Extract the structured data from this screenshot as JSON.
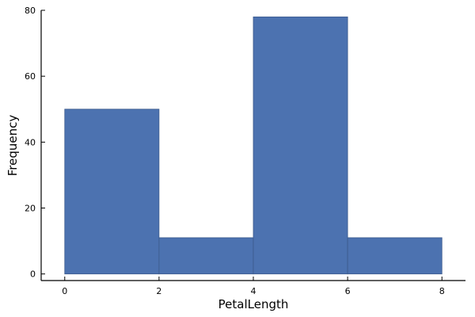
{
  "chart_data": {
    "type": "bar",
    "title": "",
    "xlabel": "PetalLength",
    "ylabel": "Frequency",
    "bins": [
      {
        "start": 0,
        "end": 2,
        "count": 50
      },
      {
        "start": 2,
        "end": 4,
        "count": 11
      },
      {
        "start": 4,
        "end": 6,
        "count": 78
      },
      {
        "start": 6,
        "end": 8,
        "count": 11
      }
    ],
    "xlim": [
      -0.5,
      8.5
    ],
    "ylim": [
      -2,
      80
    ],
    "xticks": [
      0,
      2,
      4,
      6,
      8
    ],
    "yticks": [
      0,
      20,
      40,
      60,
      80
    ],
    "grid": false,
    "legend": "none",
    "colors": {
      "bar_fill": "#4c72b0",
      "bar_stroke": "#3c5a8c",
      "axis": "#000000"
    }
  }
}
